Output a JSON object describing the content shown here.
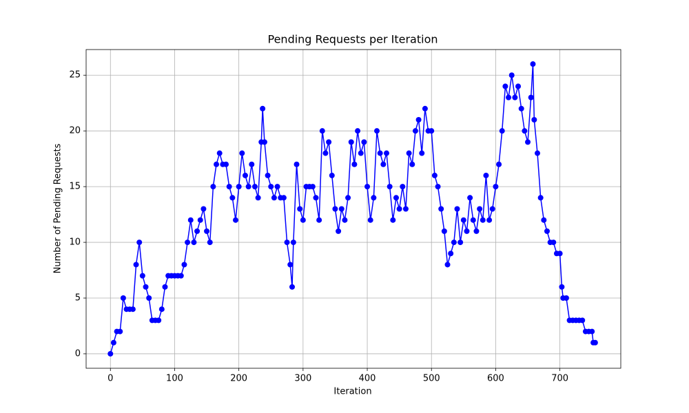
{
  "chart_data": {
    "type": "line",
    "title": "Pending Requests per Iteration",
    "x_label": "Iteration",
    "y_label": "Number of Pending Requests",
    "color": "#0000ff",
    "grid": true,
    "marker": "circle",
    "x": [
      0,
      5,
      10,
      15,
      20,
      25,
      30,
      35,
      40,
      45,
      50,
      55,
      60,
      65,
      70,
      75,
      80,
      85,
      90,
      95,
      100,
      105,
      110,
      115,
      120,
      125,
      130,
      135,
      140,
      145,
      150,
      155,
      160,
      165,
      170,
      175,
      180,
      185,
      190,
      195,
      200,
      205,
      210,
      215,
      220,
      225,
      230,
      235,
      237,
      240,
      245,
      250,
      255,
      260,
      265,
      270,
      275,
      280,
      283,
      285,
      290,
      295,
      300,
      305,
      310,
      315,
      320,
      325,
      330,
      335,
      340,
      345,
      350,
      355,
      360,
      365,
      370,
      375,
      380,
      385,
      390,
      395,
      400,
      405,
      410,
      415,
      420,
      425,
      430,
      435,
      440,
      445,
      450,
      455,
      460,
      465,
      470,
      475,
      480,
      485,
      490,
      495,
      500,
      505,
      510,
      515,
      520,
      525,
      530,
      535,
      540,
      545,
      550,
      555,
      560,
      565,
      570,
      575,
      580,
      585,
      590,
      595,
      600,
      605,
      610,
      615,
      620,
      625,
      630,
      635,
      640,
      645,
      650,
      655,
      658,
      660,
      665,
      670,
      675,
      680,
      685,
      690,
      695,
      700,
      703,
      705,
      710,
      715,
      720,
      725,
      730,
      735,
      740,
      745,
      750,
      752,
      755
    ],
    "values": [
      0,
      1,
      2,
      2,
      5,
      4,
      4,
      4,
      8,
      10,
      7,
      6,
      5,
      3,
      3,
      3,
      4,
      6,
      7,
      7,
      7,
      7,
      7,
      8,
      10,
      12,
      10,
      11,
      12,
      13,
      11,
      10,
      15,
      17,
      18,
      17,
      17,
      15,
      14,
      12,
      15,
      18,
      16,
      15,
      17,
      15,
      14,
      19,
      22,
      19,
      16,
      15,
      14,
      15,
      14,
      14,
      10,
      8,
      6,
      10,
      17,
      13,
      12,
      15,
      15,
      15,
      14,
      12,
      20,
      18,
      19,
      16,
      13,
      11,
      13,
      12,
      14,
      19,
      17,
      20,
      18,
      19,
      15,
      12,
      14,
      20,
      18,
      17,
      18,
      15,
      12,
      14,
      13,
      15,
      13,
      18,
      17,
      20,
      21,
      18,
      22,
      20,
      20,
      16,
      15,
      13,
      11,
      8,
      9,
      10,
      13,
      10,
      12,
      11,
      14,
      12,
      11,
      13,
      12,
      16,
      12,
      13,
      15,
      17,
      20,
      24,
      23,
      25,
      23,
      24,
      22,
      20,
      19,
      23,
      26,
      21,
      18,
      14,
      12,
      11,
      10,
      10,
      9,
      9,
      6,
      5,
      5,
      3,
      3,
      3,
      3,
      3,
      2,
      2,
      2,
      1,
      1
    ],
    "xlim": [
      -37.85,
      794.85
    ],
    "xticks": [
      0,
      100,
      200,
      300,
      400,
      500,
      600,
      700
    ],
    "ylim": [
      -1.3,
      27.3
    ],
    "yticks": [
      0,
      5,
      10,
      15,
      20,
      25
    ]
  }
}
